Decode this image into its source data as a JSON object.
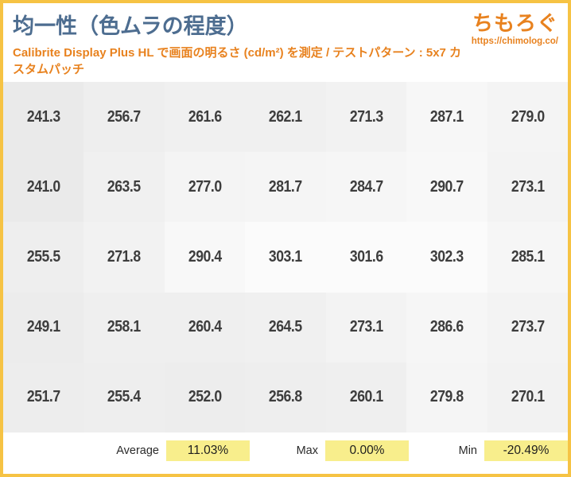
{
  "header": {
    "title": "均一性（色ムラの程度）",
    "subtitle": "Calibrite Display Plus HL で画面の明るさ (cd/m²) を測定 / テストパターン : 5x7 カスタムパッチ",
    "logo_text": "ちもろぐ",
    "logo_url": "https://chimolog.co/"
  },
  "chart_data": {
    "type": "heatmap",
    "title": "均一性（色ムラの程度）",
    "subtitle": "Calibrite Display Plus HL で画面の明るさ (cd/m²) を測定 / テストパターン : 5x7 カスタムパッチ",
    "unit": "cd/m²",
    "grid_pattern": "5x7 カスタムパッチ",
    "rows": 5,
    "cols": 7,
    "values": [
      [
        241.3,
        256.7,
        261.6,
        262.1,
        271.3,
        287.1,
        279.0
      ],
      [
        241.0,
        263.5,
        277.0,
        281.7,
        284.7,
        290.7,
        273.1
      ],
      [
        255.5,
        271.8,
        290.4,
        303.1,
        301.6,
        302.3,
        285.1
      ],
      [
        249.1,
        258.1,
        260.4,
        264.5,
        273.1,
        286.6,
        273.7
      ],
      [
        251.7,
        255.4,
        252.0,
        256.8,
        260.1,
        279.8,
        270.1
      ]
    ],
    "value_range": [
      241.0,
      303.1
    ],
    "legend_position": "none",
    "stats": [
      {
        "label": "Average",
        "value": "11.03%"
      },
      {
        "label": "Max",
        "value": "0.00%"
      },
      {
        "label": "Min",
        "value": "-20.49%"
      }
    ]
  },
  "colors": {
    "frame_border": "#f6c344",
    "title_blue": "#4d6d90",
    "accent_orange": "#e8821f",
    "cell_text": "#3d3d3d",
    "cell_bg_min": "#eaeaea",
    "cell_bg_max": "#fbfbfb",
    "stat_highlight": "#f8ee8c"
  }
}
